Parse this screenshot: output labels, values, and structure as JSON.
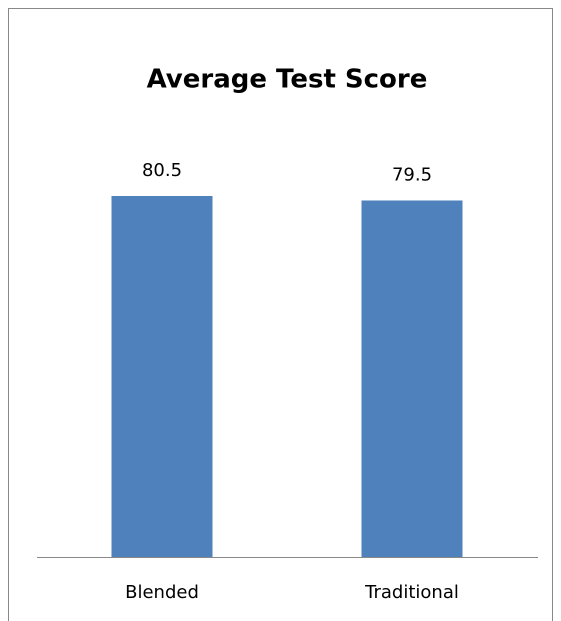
{
  "chart_data": {
    "type": "bar",
    "title": "Average Test Score",
    "categories": [
      "Blended",
      "Traditional"
    ],
    "values": [
      80.5,
      79.5
    ],
    "color": "#4f81bd"
  }
}
